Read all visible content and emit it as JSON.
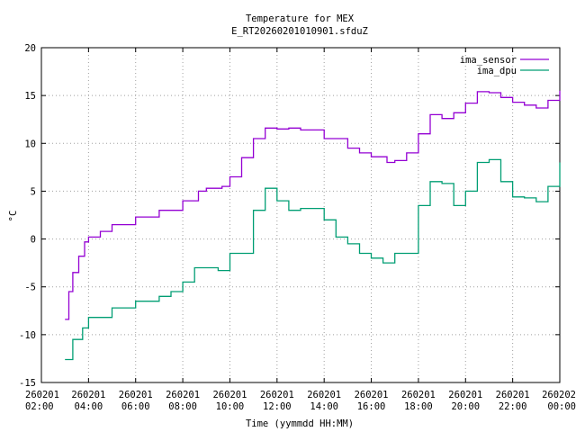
{
  "chart_data": {
    "type": "line",
    "title": "Temperature for MEX",
    "subtitle": "E_RT20260201010901.sfduZ",
    "xlabel": "Time (yymmdd HH:MM)",
    "ylabel": "°C",
    "ylim": [
      -15,
      20
    ],
    "yticks": [
      -15,
      -10,
      -5,
      0,
      5,
      10,
      15,
      20
    ],
    "xlim": [
      "2026-02-01 02:00",
      "2026-02-02 00:00"
    ],
    "xticks": [
      {
        "date": "260201",
        "time": "02:00"
      },
      {
        "date": "260201",
        "time": "04:00"
      },
      {
        "date": "260201",
        "time": "06:00"
      },
      {
        "date": "260201",
        "time": "08:00"
      },
      {
        "date": "260201",
        "time": "10:00"
      },
      {
        "date": "260201",
        "time": "12:00"
      },
      {
        "date": "260201",
        "time": "14:00"
      },
      {
        "date": "260201",
        "time": "16:00"
      },
      {
        "date": "260201",
        "time": "18:00"
      },
      {
        "date": "260201",
        "time": "20:00"
      },
      {
        "date": "260201",
        "time": "22:00"
      },
      {
        "date": "260202",
        "time": "00:00"
      }
    ],
    "grid": true,
    "legend_position": "top-right",
    "series": [
      {
        "name": "ima_sensor",
        "color": "#9400d3",
        "x": [
          "2026-02-01 03:00",
          "2026-02-01 03:10",
          "2026-02-01 03:20",
          "2026-02-01 03:35",
          "2026-02-01 03:50",
          "2026-02-01 04:00",
          "2026-02-01 04:30",
          "2026-02-01 05:00",
          "2026-02-01 06:00",
          "2026-02-01 07:00",
          "2026-02-01 08:00",
          "2026-02-01 08:40",
          "2026-02-01 09:00",
          "2026-02-01 09:40",
          "2026-02-01 10:00",
          "2026-02-01 10:30",
          "2026-02-01 11:00",
          "2026-02-01 11:30",
          "2026-02-01 12:00",
          "2026-02-01 12:30",
          "2026-02-01 13:00",
          "2026-02-01 14:00",
          "2026-02-01 15:00",
          "2026-02-01 15:30",
          "2026-02-01 16:00",
          "2026-02-01 16:40",
          "2026-02-01 17:00",
          "2026-02-01 17:30",
          "2026-02-01 18:00",
          "2026-02-01 18:30",
          "2026-02-01 19:00",
          "2026-02-01 19:30",
          "2026-02-01 20:00",
          "2026-02-01 20:30",
          "2026-02-01 21:00",
          "2026-02-01 21:30",
          "2026-02-01 22:00",
          "2026-02-01 22:30",
          "2026-02-01 23:00",
          "2026-02-01 23:30",
          "2026-02-02 00:00"
        ],
        "values": [
          -8.4,
          -5.5,
          -3.5,
          -1.8,
          -0.3,
          0.2,
          0.8,
          1.5,
          2.3,
          3.0,
          4.0,
          5.0,
          5.3,
          5.5,
          6.5,
          8.5,
          10.5,
          11.6,
          11.5,
          11.6,
          11.4,
          10.5,
          9.5,
          9.0,
          8.6,
          8.0,
          8.2,
          9.0,
          11.0,
          13.0,
          12.6,
          13.2,
          14.2,
          15.4,
          15.3,
          14.8,
          14.3,
          14.0,
          13.7,
          14.5,
          15.5
        ]
      },
      {
        "name": "ima_dpu",
        "color": "#009e73",
        "x": [
          "2026-02-01 03:00",
          "2026-02-01 03:20",
          "2026-02-01 03:45",
          "2026-02-01 04:00",
          "2026-02-01 05:00",
          "2026-02-01 06:00",
          "2026-02-01 07:00",
          "2026-02-01 07:30",
          "2026-02-01 08:00",
          "2026-02-01 08:30",
          "2026-02-01 09:00",
          "2026-02-01 09:30",
          "2026-02-01 10:00",
          "2026-02-01 11:00",
          "2026-02-01 11:30",
          "2026-02-01 12:00",
          "2026-02-01 12:30",
          "2026-02-01 13:00",
          "2026-02-01 14:00",
          "2026-02-01 14:30",
          "2026-02-01 15:00",
          "2026-02-01 15:30",
          "2026-02-01 16:00",
          "2026-02-01 16:30",
          "2026-02-01 17:00",
          "2026-02-01 18:00",
          "2026-02-01 18:30",
          "2026-02-01 19:00",
          "2026-02-01 19:30",
          "2026-02-01 20:00",
          "2026-02-01 20:30",
          "2026-02-01 21:00",
          "2026-02-01 21:30",
          "2026-02-01 22:00",
          "2026-02-01 22:30",
          "2026-02-01 23:00",
          "2026-02-01 23:30",
          "2026-02-02 00:00"
        ],
        "values": [
          -12.6,
          -10.5,
          -9.3,
          -8.2,
          -7.2,
          -6.5,
          -6.0,
          -5.5,
          -4.5,
          -3.0,
          -3.0,
          -3.3,
          -1.5,
          3.0,
          5.3,
          4.0,
          3.0,
          3.2,
          2.0,
          0.2,
          -0.5,
          -1.5,
          -2.0,
          -2.5,
          -1.5,
          3.5,
          6.0,
          5.8,
          3.5,
          5.0,
          8.0,
          8.3,
          6.0,
          4.4,
          4.3,
          3.9,
          5.5,
          8.0
        ]
      }
    ]
  }
}
